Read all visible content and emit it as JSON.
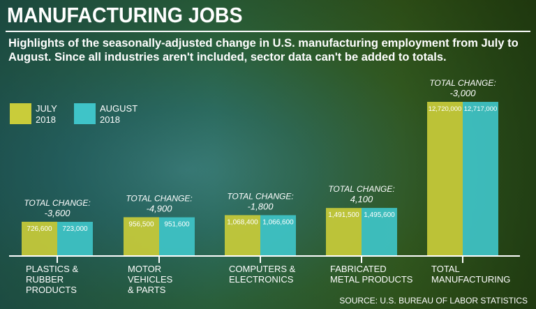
{
  "title": "MANUFACTURING JOBS",
  "subtitle": "Highlights of the seasonally-adjusted change in U.S. manufacturing employment from July to August. Since all industries aren't included, sector data can't be added to totals.",
  "source": "SOURCE: U.S. BUREAU OF LABOR STATISTICS",
  "chart_data": {
    "type": "bar",
    "categories": [
      "PLASTICS & RUBBER PRODUCTS",
      "MOTOR VEHICLES & PARTS",
      "COMPUTERS & ELECTRONICS",
      "FABRICATED METAL PRODUCTS",
      "TOTAL MANUFACTURING"
    ],
    "category_lines": [
      [
        "PLASTICS &",
        "RUBBER",
        "PRODUCTS"
      ],
      [
        "MOTOR",
        "VEHICLES",
        "& PARTS"
      ],
      [
        "COMPUTERS &",
        "ELECTRONICS"
      ],
      [
        "FABRICATED",
        "METAL PRODUCTS"
      ],
      [
        "TOTAL",
        "MANUFACTURING"
      ]
    ],
    "series": [
      {
        "name": "JULY 2018",
        "color": "#c9cc3a",
        "values": [
          726600,
          956500,
          1068400,
          1491500,
          12720000
        ],
        "labels": [
          "726,600",
          "956,500",
          "1,068,400",
          "1,491,500",
          "12,720,000"
        ]
      },
      {
        "name": "AUGUST 2018",
        "color": "#3fc4c8",
        "values": [
          723000,
          951600,
          1066600,
          1495600,
          12717000
        ],
        "labels": [
          "723,000",
          "951,600",
          "1,066,600",
          "1,495,600",
          "12,717,000"
        ]
      }
    ],
    "annotation_label": "TOTAL CHANGE:",
    "changes": [
      "-3,600",
      "-4,900",
      "-1,800",
      "4,100",
      "-3,000"
    ],
    "legend": [
      {
        "line1": "JULY",
        "line2": "2018"
      },
      {
        "line1": "AUGUST",
        "line2": "2018"
      }
    ],
    "legend_placement": "top-left",
    "grid": false
  }
}
